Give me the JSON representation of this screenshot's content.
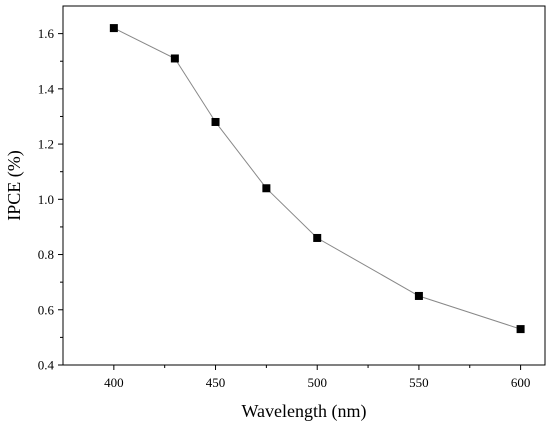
{
  "chart_data": {
    "type": "line",
    "title": "",
    "xlabel": "Wavelength (nm)",
    "ylabel": "IPCE (%)",
    "xlim": [
      375,
      612
    ],
    "ylim": [
      0.4,
      1.7
    ],
    "xticks": [
      400,
      450,
      500,
      550,
      600
    ],
    "yticks": [
      0.4,
      0.6,
      0.8,
      1.0,
      1.2,
      1.4,
      1.6
    ],
    "xtick_labels": [
      "400",
      "450",
      "500",
      "550",
      "600"
    ],
    "ytick_labels": [
      "0.4",
      "0.6",
      "0.8",
      "1.0",
      "1.2",
      "1.4",
      "1.6"
    ],
    "grid": false,
    "marker": "square",
    "line_color": "#888888",
    "marker_color": "#000000",
    "x": [
      400,
      430,
      450,
      475,
      500,
      550,
      600
    ],
    "y": [
      1.62,
      1.51,
      1.28,
      1.04,
      0.86,
      0.65,
      0.53
    ]
  }
}
